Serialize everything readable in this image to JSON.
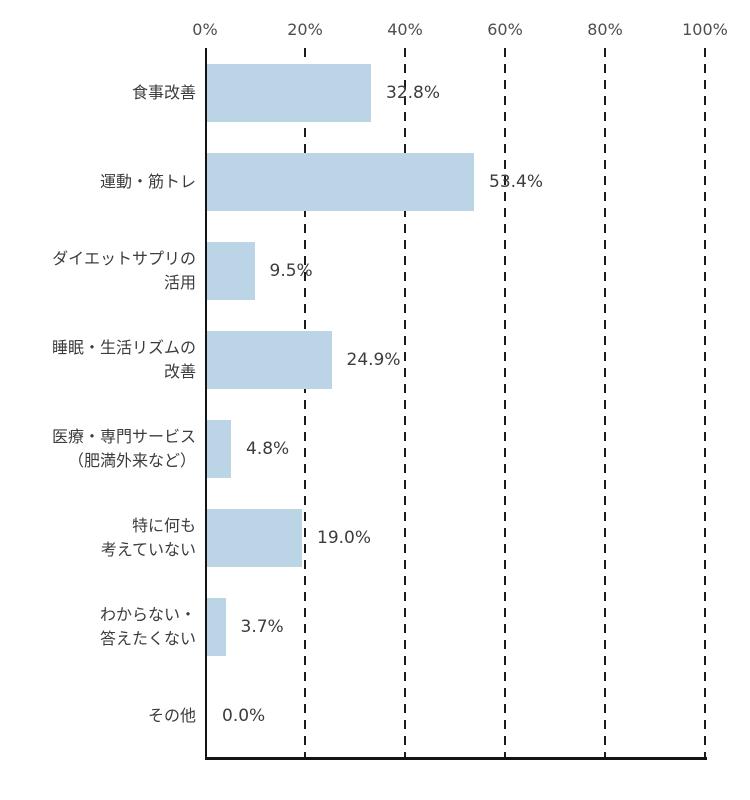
{
  "chart_data": {
    "type": "bar",
    "orientation": "horizontal",
    "title": "",
    "categories": [
      "食事改善",
      "運動・筋トレ",
      "ダイエットサプリの\n活用",
      "睡眠・生活リズムの\n改善",
      "医療・専門サービス\n（肥満外来など）",
      "特に何も\n考えていない",
      "わからない・\n答えたくない",
      "その他"
    ],
    "values": [
      32.8,
      53.4,
      9.5,
      24.9,
      4.8,
      19.0,
      3.7,
      0.0
    ],
    "value_labels": [
      "32.8%",
      "53.4%",
      "9.5%",
      "24.9%",
      "4.8%",
      "19.0%",
      "3.7%",
      "0.0%"
    ],
    "x_ticks": [
      "0%",
      "20%",
      "40%",
      "60%",
      "80%",
      "100%"
    ],
    "x_tick_values": [
      0,
      20,
      40,
      60,
      80,
      100
    ],
    "xlim": [
      0,
      100
    ],
    "bar_color": "#bcd5e6",
    "axis_color": "#141414",
    "grid": "dashed-vertical",
    "legend": "none"
  }
}
